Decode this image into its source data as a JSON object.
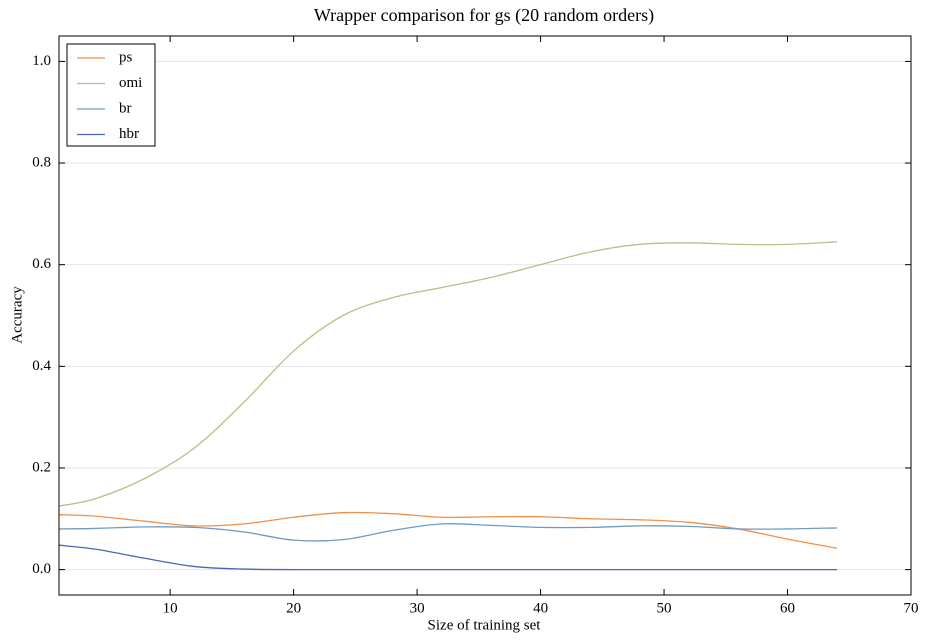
{
  "chart_data": {
    "type": "line",
    "title": "Wrapper comparison for gs (20 random orders)",
    "x_label": "Size of training set",
    "y_label": "Accuracy",
    "x": [
      1,
      4,
      8,
      12,
      16,
      20,
      24,
      28,
      32,
      36,
      40,
      44,
      48,
      52,
      56,
      60,
      64
    ],
    "series": [
      {
        "name": "ps",
        "color": "#f0914a",
        "values": [
          0.108,
          0.105,
          0.095,
          0.086,
          0.09,
          0.103,
          0.112,
          0.11,
          0.103,
          0.104,
          0.104,
          0.1,
          0.098,
          0.093,
          0.08,
          0.06,
          0.042
        ]
      },
      {
        "name": "omi",
        "color": "#b5c08a",
        "values": [
          0.125,
          0.14,
          0.18,
          0.24,
          0.33,
          0.43,
          0.5,
          0.535,
          0.555,
          0.575,
          0.6,
          0.625,
          0.64,
          0.643,
          0.64,
          0.64,
          0.645
        ]
      },
      {
        "name": "br",
        "color": "#6f9bc2",
        "values": [
          0.08,
          0.081,
          0.084,
          0.083,
          0.074,
          0.058,
          0.059,
          0.077,
          0.09,
          0.087,
          0.083,
          0.083,
          0.086,
          0.085,
          0.08,
          0.08,
          0.082
        ]
      },
      {
        "name": "hbr",
        "color": "#4a66b8",
        "values": [
          0.048,
          0.04,
          0.022,
          0.006,
          0.001,
          0,
          0,
          0,
          0,
          0,
          0,
          0,
          0,
          0,
          0,
          0,
          0
        ]
      }
    ],
    "xlim": [
      1,
      70
    ],
    "xticks": [
      10,
      20,
      30,
      40,
      50,
      60,
      70
    ],
    "ylim": [
      -0.05,
      1.05
    ],
    "yticks": [
      {
        "value": 0,
        "label": "0.0"
      },
      0.2,
      0.4,
      0.6,
      0.8,
      {
        "value": 1,
        "label": "1.0"
      }
    ],
    "grid": true,
    "legend": "upper-left"
  }
}
